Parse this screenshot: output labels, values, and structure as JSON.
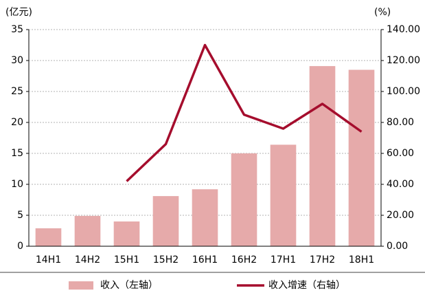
{
  "chart_data": {
    "type": "bar",
    "y_unit_label": "(亿元)",
    "y2_unit_label": "(%)",
    "categories": [
      "14H1",
      "14H2",
      "15H1",
      "15H2",
      "16H1",
      "16H2",
      "17H1",
      "17H2",
      "18H1"
    ],
    "series": [
      {
        "name": "收入（左轴）",
        "type": "bar",
        "color": "#e6aaaa",
        "values": [
          2.9,
          4.9,
          4.0,
          8.1,
          9.2,
          15.0,
          16.4,
          29.1,
          28.5
        ]
      },
      {
        "name": "收入增速（右轴）",
        "type": "line",
        "axis": "y2",
        "color": "#a50d2d",
        "values": [
          null,
          null,
          42,
          66,
          130,
          85,
          76,
          92,
          74
        ]
      }
    ],
    "ylim": [
      0,
      35
    ],
    "yticks": [
      0,
      5,
      10,
      15,
      20,
      25,
      30,
      35
    ],
    "y2lim": [
      0,
      140
    ],
    "y2ticks": [
      {
        "value": 0,
        "label": "0.00"
      },
      {
        "value": 20,
        "label": "20.00"
      },
      {
        "value": 40,
        "label": "40.00"
      },
      {
        "value": 60,
        "label": "60.00"
      },
      {
        "value": 80,
        "label": "80.00"
      },
      {
        "value": 100,
        "label": "100.00"
      },
      {
        "value": 120,
        "label": "120.00"
      },
      {
        "value": 140,
        "label": "140.00"
      }
    ],
    "grid": true
  }
}
